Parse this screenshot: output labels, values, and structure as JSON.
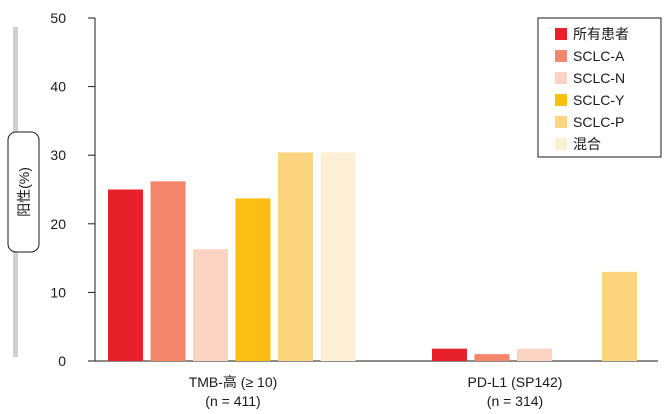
{
  "chart_data": {
    "type": "bar",
    "ylabel": "阳性(%)",
    "ylim": [
      0,
      50
    ],
    "yticks": [
      "0",
      "10",
      "20",
      "30",
      "40",
      "50"
    ],
    "grid": false,
    "legend_position": "top-right",
    "categories": [
      {
        "line1": "TMB-高 (≥ 10)",
        "line2": "(n = 411)"
      },
      {
        "line1": "PD-L1 (SP142)",
        "line2": "(n = 314)"
      }
    ],
    "series": [
      {
        "name": "所有患者",
        "color": "#e8202a",
        "values": [
          25.0,
          1.8
        ]
      },
      {
        "name": "SCLC-A",
        "color": "#f4876b",
        "values": [
          26.2,
          1.0
        ]
      },
      {
        "name": "SCLC-N",
        "color": "#fbd3c3",
        "values": [
          16.3,
          1.8
        ]
      },
      {
        "name": "SCLC-Y",
        "color": "#fbbf14",
        "values": [
          23.7,
          0
        ]
      },
      {
        "name": "SCLC-P",
        "color": "#fdd580",
        "values": [
          30.4,
          13.0
        ]
      },
      {
        "name": "混合",
        "color": "#fdefd3",
        "values": [
          30.4,
          0
        ]
      }
    ]
  }
}
